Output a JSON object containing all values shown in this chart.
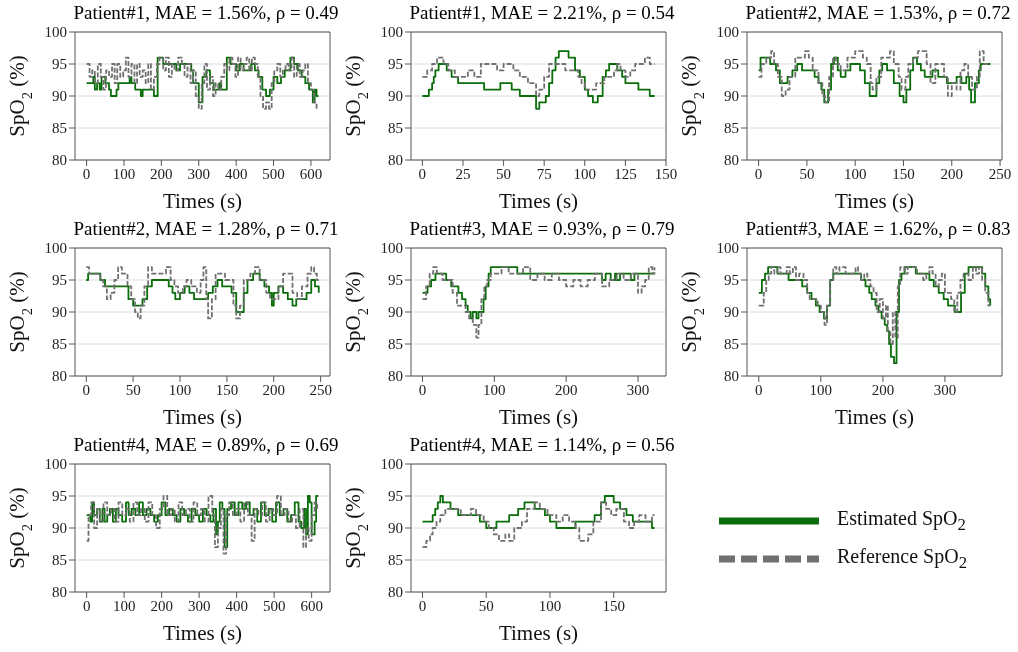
{
  "chart_data": [
    {
      "type": "step",
      "title": "Patient#1, MAE = 1.56%, ρ = 0.49",
      "xlabel": "Times (s)",
      "ylabel": "SpO$_{2}$ (%)",
      "xlim": [
        -31,
        651
      ],
      "xticks": [
        0,
        100,
        200,
        300,
        400,
        500,
        600
      ],
      "ylim": [
        80,
        100
      ],
      "yticks": [
        80,
        85,
        90,
        95,
        100
      ],
      "grid": "y",
      "series": [
        {
          "color": "#0a6e0a",
          "line_style": "solid",
          "x": [
            0,
            15,
            18,
            22,
            28,
            35,
            40,
            50,
            60,
            65,
            80,
            85,
            115,
            120,
            130,
            145,
            150,
            180,
            190,
            205,
            240,
            250,
            280,
            285,
            300,
            310,
            320,
            330,
            340,
            355,
            360,
            375,
            385,
            400,
            410,
            420,
            440,
            450,
            460,
            470,
            480,
            490,
            500,
            510,
            520,
            530,
            545,
            555,
            565,
            575,
            585,
            595,
            605,
            610,
            615,
            620
          ],
          "values": [
            92,
            92,
            93,
            91,
            92,
            91,
            93,
            92,
            91,
            90,
            91,
            92,
            93,
            92,
            91,
            90,
            91,
            90,
            96,
            95,
            94,
            95,
            94,
            92,
            89,
            93,
            94,
            92,
            91,
            92,
            91,
            96,
            95,
            94,
            95,
            94,
            95,
            94,
            93,
            91,
            90,
            91,
            93,
            92,
            93,
            94,
            96,
            95,
            94,
            93,
            92,
            91,
            89,
            91,
            90,
            90
          ]
        },
        {
          "color": "#707070",
          "line_style": "dashed",
          "x": [
            0,
            8,
            15,
            22,
            30,
            38,
            45,
            52,
            60,
            68,
            75,
            82,
            90,
            98,
            105,
            112,
            120,
            128,
            135,
            142,
            150,
            158,
            165,
            172,
            180,
            188,
            195,
            205,
            212,
            220,
            228,
            235,
            245,
            255,
            262,
            270,
            278,
            285,
            292,
            300,
            308,
            315,
            322,
            330,
            338,
            345,
            352,
            360,
            368,
            375,
            382,
            390,
            398,
            405,
            412,
            420,
            428,
            435,
            442,
            450,
            458,
            465,
            472,
            480,
            488,
            495,
            502,
            510,
            518,
            525,
            532,
            540,
            548,
            555,
            562,
            570,
            578,
            585,
            592,
            600,
            608,
            615
          ],
          "values": [
            95,
            93,
            94,
            92,
            95,
            93,
            91,
            94,
            93,
            95,
            92,
            95,
            93,
            94,
            96,
            93,
            95,
            92,
            95,
            93,
            94,
            92,
            95,
            91,
            93,
            95,
            96,
            94,
            96,
            93,
            95,
            94,
            96,
            95,
            93,
            95,
            92,
            94,
            90,
            88,
            92,
            95,
            91,
            93,
            90,
            92,
            91,
            93,
            95,
            94,
            96,
            95,
            93,
            96,
            94,
            95,
            96,
            94,
            96,
            95,
            93,
            90,
            88,
            89,
            88,
            92,
            94,
            95,
            93,
            94,
            95,
            94,
            96,
            93,
            95,
            93,
            94,
            95,
            92,
            91,
            89,
            88
          ]
        }
      ]
    },
    {
      "type": "step",
      "title": "Patient#1, MAE = 2.21%, ρ = 0.54",
      "xlabel": "Times (s)",
      "ylabel": "SpO$_{2}$ (%)",
      "xlim": [
        -7,
        150
      ],
      "xticks": [
        0,
        25,
        50,
        75,
        100,
        125,
        150
      ],
      "ylim": [
        80,
        100
      ],
      "yticks": [
        80,
        85,
        90,
        95,
        100
      ],
      "grid": "y",
      "series": [
        {
          "color": "#0a6e0a",
          "line_style": "solid",
          "x": [
            0,
            4,
            6,
            7,
            8,
            10,
            15,
            18,
            22,
            38,
            48,
            55,
            60,
            70,
            72,
            76,
            78,
            80,
            82,
            84,
            90,
            94,
            97,
            100,
            102,
            105,
            108,
            111,
            113,
            115,
            120,
            123,
            125,
            133,
            140,
            143
          ],
          "values": [
            90,
            91,
            92,
            93,
            94,
            95,
            94,
            93,
            92,
            91,
            92,
            91,
            90,
            88,
            89,
            90,
            92,
            94,
            96,
            97,
            96,
            94,
            93,
            91,
            90,
            89,
            90,
            93,
            94,
            95,
            94,
            93,
            92,
            91,
            90,
            90
          ]
        },
        {
          "color": "#707070",
          "line_style": "dashed",
          "x": [
            0,
            3,
            6,
            9,
            13,
            16,
            20,
            25,
            28,
            32,
            36,
            42,
            46,
            50,
            56,
            60,
            65,
            70,
            72,
            75,
            78,
            82,
            88,
            92,
            96,
            98,
            100,
            103,
            107,
            112,
            118,
            120,
            122,
            125,
            128,
            131,
            137,
            140,
            143
          ],
          "values": [
            93,
            94,
            95,
            96,
            95,
            94,
            93,
            93,
            94,
            93,
            95,
            95,
            94,
            95,
            94,
            93,
            92,
            90,
            91,
            93,
            95,
            95,
            94,
            94,
            93,
            92,
            91,
            91,
            92,
            93,
            94,
            95,
            94,
            93,
            94,
            95,
            96,
            95,
            95
          ]
        }
      ]
    },
    {
      "type": "step",
      "title": "Patient#2, MAE = 1.53%, ρ = 0.72",
      "xlabel": "Times (s)",
      "ylabel": "SpO$_{2}$ (%)",
      "xlim": [
        -12,
        252
      ],
      "xticks": [
        0,
        50,
        100,
        150,
        200,
        250
      ],
      "ylim": [
        80,
        100
      ],
      "yticks": [
        80,
        85,
        90,
        95,
        100
      ],
      "grid": "y",
      "series": [
        {
          "color": "#0a6e0a",
          "line_style": "solid",
          "x": [
            0,
            2,
            12,
            18,
            22,
            28,
            30,
            35,
            40,
            45,
            55,
            58,
            62,
            65,
            68,
            72,
            75,
            78,
            82,
            85,
            90,
            95,
            105,
            110,
            115,
            120,
            122,
            125,
            128,
            133,
            140,
            146,
            150,
            153,
            157,
            160,
            164,
            168,
            172,
            180,
            186,
            195,
            205,
            210,
            215,
            218,
            220,
            224,
            228,
            230,
            240
          ],
          "values": [
            94,
            96,
            95,
            94,
            92,
            92,
            93,
            94,
            95,
            94,
            94,
            93,
            92,
            91,
            89,
            91,
            95,
            96,
            94,
            93,
            94,
            95,
            94,
            92,
            90,
            90,
            92,
            94,
            95,
            94,
            92,
            90,
            89,
            91,
            94,
            96,
            95,
            94,
            93,
            94,
            93,
            92,
            93,
            92,
            93,
            91,
            89,
            92,
            94,
            95,
            95
          ]
        },
        {
          "color": "#707070",
          "line_style": "dashed",
          "x": [
            0,
            3,
            8,
            13,
            16,
            20,
            24,
            28,
            32,
            38,
            48,
            52,
            56,
            62,
            66,
            69,
            73,
            77,
            80,
            85,
            92,
            100,
            108,
            112,
            116,
            118,
            122,
            127,
            136,
            140,
            145,
            148,
            152,
            155,
            160,
            165,
            174,
            178,
            183,
            192,
            196,
            200,
            205,
            209,
            213,
            217,
            221,
            226,
            229,
            233,
            238
          ],
          "values": [
            93,
            95,
            96,
            97,
            95,
            93,
            90,
            91,
            93,
            96,
            97,
            96,
            94,
            92,
            90,
            89,
            93,
            96,
            95,
            94,
            96,
            97,
            96,
            95,
            92,
            91,
            93,
            96,
            97,
            95,
            93,
            91,
            93,
            95,
            96,
            97,
            95,
            92,
            95,
            93,
            90,
            92,
            91,
            94,
            95,
            93,
            91,
            93,
            97,
            95,
            95
          ]
        }
      ]
    },
    {
      "type": "step",
      "title": "Patient#2, MAE = 1.28%, ρ = 0.71",
      "xlabel": "Times (s)",
      "ylabel": "SpO$_{2}$ (%)",
      "xlim": [
        -12,
        260
      ],
      "xticks": [
        0,
        50,
        100,
        150,
        200,
        250
      ],
      "ylim": [
        80,
        100
      ],
      "yticks": [
        80,
        85,
        90,
        95,
        100
      ],
      "grid": "y",
      "series": [
        {
          "color": "#0a6e0a",
          "line_style": "solid",
          "x": [
            0,
            2,
            15,
            20,
            45,
            50,
            55,
            60,
            65,
            70,
            88,
            92,
            95,
            100,
            105,
            110,
            115,
            125,
            130,
            135,
            140,
            145,
            155,
            160,
            168,
            172,
            178,
            185,
            190,
            195,
            198,
            200,
            205,
            210,
            215,
            220,
            224,
            235,
            240,
            244,
            248
          ],
          "values": [
            95,
            96,
            95,
            94,
            92,
            91,
            91,
            92,
            94,
            95,
            94,
            93,
            92,
            93,
            94,
            93,
            92,
            92,
            93,
            94,
            95,
            94,
            93,
            90,
            93,
            95,
            96,
            95,
            94,
            93,
            91,
            93,
            94,
            93,
            92,
            91,
            92,
            93,
            95,
            94,
            93
          ]
        },
        {
          "color": "#707070",
          "line_style": "dashed",
          "x": [
            0,
            3,
            15,
            18,
            22,
            26,
            30,
            34,
            38,
            44,
            48,
            52,
            55,
            58,
            62,
            66,
            70,
            85,
            90,
            94,
            98,
            103,
            107,
            112,
            118,
            122,
            125,
            128,
            130,
            134,
            138,
            148,
            157,
            160,
            164,
            168,
            175,
            180,
            185,
            192,
            196,
            205,
            210,
            220,
            225,
            230,
            236,
            240,
            243,
            246,
            248
          ],
          "values": [
            97,
            96,
            95,
            94,
            92,
            93,
            95,
            97,
            96,
            94,
            92,
            90,
            89,
            91,
            94,
            97,
            96,
            97,
            95,
            94,
            93,
            94,
            95,
            94,
            93,
            95,
            97,
            92,
            89,
            92,
            96,
            95,
            91,
            89,
            91,
            95,
            96,
            97,
            95,
            93,
            92,
            94,
            96,
            93,
            92,
            94,
            96,
            97,
            96,
            95,
            95
          ]
        }
      ]
    },
    {
      "type": "step",
      "title": "Patient#3, MAE = 0.93%, ρ = 0.79",
      "xlabel": "Times (s)",
      "ylabel": "SpO$_{2}$ (%)",
      "xlim": [
        -16,
        339
      ],
      "xticks": [
        0,
        100,
        200,
        300
      ],
      "ylim": [
        80,
        100
      ],
      "yticks": [
        80,
        85,
        90,
        95,
        100
      ],
      "grid": "y",
      "series": [
        {
          "color": "#0a6e0a",
          "line_style": "solid",
          "x": [
            0,
            7,
            12,
            18,
            33,
            40,
            50,
            55,
            60,
            63,
            67,
            70,
            75,
            78,
            85,
            88,
            92,
            95,
            132,
            245,
            250,
            255,
            262,
            268,
            270,
            275,
            290,
            295,
            323
          ],
          "values": [
            93,
            94,
            95,
            96,
            95,
            94,
            93,
            92,
            91,
            90,
            89,
            90,
            89,
            90,
            92,
            94,
            96,
            97,
            96,
            96,
            95,
            96,
            95,
            96,
            95,
            96,
            95,
            96,
            96
          ]
        },
        {
          "color": "#707070",
          "line_style": "dashed",
          "x": [
            0,
            5,
            10,
            15,
            20,
            28,
            42,
            48,
            60,
            65,
            70,
            75,
            78,
            82,
            86,
            90,
            95,
            110,
            120,
            140,
            150,
            160,
            170,
            180,
            190,
            200,
            210,
            220,
            230,
            240,
            250,
            260,
            270,
            280,
            290,
            300,
            305,
            310,
            315,
            320,
            323
          ],
          "values": [
            92,
            94,
            96,
            97,
            96,
            95,
            93,
            91,
            90,
            89,
            88,
            86,
            88,
            92,
            94,
            95,
            96,
            97,
            96,
            97,
            95,
            96,
            95,
            96,
            95,
            94,
            95,
            94,
            95,
            96,
            94,
            95,
            96,
            95,
            96,
            93,
            94,
            95,
            97,
            96,
            97
          ]
        }
      ]
    },
    {
      "type": "step",
      "title": "Patient#3, MAE = 1.62%, ρ = 0.83",
      "xlabel": "Times (s)",
      "ylabel": "SpO$_{2}$ (%)",
      "xlim": [
        -19,
        392
      ],
      "xticks": [
        0,
        100,
        200,
        300
      ],
      "ylim": [
        80,
        100
      ],
      "yticks": [
        80,
        85,
        90,
        95,
        100
      ],
      "grid": "y",
      "series": [
        {
          "color": "#0a6e0a",
          "line_style": "solid",
          "x": [
            0,
            5,
            10,
            15,
            30,
            48,
            70,
            78,
            85,
            92,
            98,
            105,
            110,
            115,
            120,
            165,
            172,
            178,
            182,
            188,
            193,
            198,
            203,
            207,
            210,
            213,
            218,
            222,
            226,
            230,
            235,
            253,
            275,
            282,
            290,
            298,
            305,
            316,
            326,
            332,
            338,
            360,
            365,
            370,
            373
          ],
          "values": [
            93,
            95,
            96,
            97,
            96,
            95,
            94,
            93,
            92,
            91,
            90,
            89,
            91,
            95,
            96,
            95,
            94,
            93,
            92,
            91,
            90,
            89,
            88,
            87,
            85,
            83,
            82,
            90,
            95,
            96,
            97,
            96,
            95,
            94,
            93,
            92,
            91,
            90,
            93,
            96,
            97,
            96,
            94,
            92,
            91
          ]
        },
        {
          "color": "#707070",
          "line_style": "dashed",
          "x": [
            0,
            8,
            12,
            16,
            20,
            25,
            30,
            35,
            45,
            50,
            55,
            60,
            65,
            72,
            78,
            82,
            95,
            100,
            106,
            110,
            115,
            120,
            125,
            130,
            140,
            156,
            160,
            165,
            170,
            175,
            180,
            185,
            190,
            195,
            200,
            205,
            208,
            212,
            216,
            220,
            224,
            228,
            235,
            240,
            255,
            265,
            270,
            275,
            280,
            285,
            290,
            295,
            300,
            310,
            315,
            320,
            325,
            330,
            338,
            345,
            350,
            355,
            360,
            365,
            370,
            373
          ],
          "values": [
            91,
            93,
            95,
            96,
            97,
            96,
            97,
            96,
            97,
            96,
            97,
            95,
            96,
            95,
            93,
            92,
            91,
            90,
            88,
            91,
            95,
            97,
            96,
            97,
            96,
            97,
            96,
            95,
            96,
            95,
            94,
            93,
            90,
            92,
            89,
            91,
            87,
            85,
            90,
            86,
            94,
            97,
            96,
            97,
            96,
            95,
            96,
            97,
            96,
            94,
            95,
            96,
            93,
            92,
            90,
            93,
            95,
            96,
            95,
            97,
            96,
            97,
            95,
            93,
            91,
            91
          ]
        }
      ]
    },
    {
      "type": "step",
      "title": "Patient#4, MAE = 0.89%, ρ = 0.69",
      "xlabel": "Times (s)",
      "ylabel": "SpO$_{2}$ (%)",
      "xlim": [
        -31,
        649
      ],
      "xticks": [
        0,
        100,
        200,
        300,
        400,
        500,
        600
      ],
      "ylim": [
        80,
        100
      ],
      "yticks": [
        80,
        85,
        90,
        95,
        100
      ],
      "grid": "y",
      "series": [
        {
          "color": "#0a6e0a",
          "line_style": "solid",
          "x": [
            0,
            10,
            15,
            20,
            28,
            35,
            42,
            48,
            55,
            62,
            70,
            78,
            85,
            95,
            105,
            112,
            120,
            130,
            140,
            150,
            160,
            170,
            180,
            190,
            200,
            210,
            220,
            230,
            240,
            250,
            260,
            270,
            280,
            290,
            300,
            310,
            320,
            330,
            338,
            345,
            350,
            355,
            362,
            368,
            375,
            385,
            395,
            405,
            415,
            425,
            435,
            445,
            455,
            465,
            475,
            485,
            495,
            505,
            515,
            525,
            535,
            545,
            555,
            565,
            572,
            580,
            585,
            590,
            595,
            600,
            608,
            612,
            618
          ],
          "values": [
            92,
            91,
            94,
            92,
            93,
            91,
            93,
            91,
            92,
            93,
            91,
            93,
            92,
            91,
            94,
            92,
            93,
            92,
            94,
            92,
            93,
            92,
            91,
            92,
            94,
            92,
            93,
            92,
            91,
            93,
            92,
            91,
            93,
            92,
            91,
            93,
            92,
            91,
            93,
            89,
            91,
            94,
            93,
            87,
            93,
            94,
            92,
            94,
            93,
            94,
            92,
            93,
            91,
            94,
            92,
            93,
            91,
            94,
            92,
            93,
            91,
            92,
            94,
            91,
            90,
            93,
            89,
            95,
            94,
            89,
            91,
            95,
            95
          ]
        },
        {
          "color": "#707070",
          "line_style": "dashed",
          "x": [
            0,
            5,
            12,
            20,
            28,
            35,
            45,
            55,
            65,
            75,
            85,
            95,
            105,
            115,
            125,
            135,
            145,
            155,
            165,
            175,
            185,
            195,
            205,
            215,
            225,
            235,
            245,
            255,
            265,
            275,
            285,
            295,
            305,
            315,
            325,
            335,
            342,
            350,
            358,
            365,
            372,
            380,
            390,
            400,
            410,
            420,
            430,
            440,
            448,
            458,
            468,
            478,
            488,
            498,
            508,
            518,
            528,
            538,
            548,
            558,
            568,
            578,
            585,
            592,
            600,
            608,
            615
          ],
          "values": [
            88,
            92,
            94,
            90,
            93,
            91,
            94,
            92,
            93,
            91,
            94,
            92,
            93,
            91,
            94,
            92,
            93,
            91,
            94,
            92,
            90,
            93,
            95,
            92,
            93,
            91,
            94,
            92,
            93,
            91,
            94,
            92,
            93,
            91,
            95,
            92,
            87,
            90,
            93,
            86,
            92,
            94,
            92,
            93,
            91,
            94,
            92,
            88,
            93,
            92,
            94,
            91,
            93,
            92,
            95,
            92,
            93,
            91,
            92,
            90,
            93,
            87,
            90,
            88,
            92,
            94,
            93
          ]
        }
      ]
    },
    {
      "type": "step",
      "title": "Patient#4, MAE = 1.14%, ρ = 0.56",
      "xlabel": "Times (s)",
      "ylabel": "SpO$_{2}$ (%)",
      "xlim": [
        -9,
        191
      ],
      "xticks": [
        0,
        50,
        100,
        150
      ],
      "ylim": [
        80,
        100
      ],
      "yticks": [
        80,
        85,
        90,
        95,
        100
      ],
      "grid": "y",
      "legend": "right",
      "series": [
        {
          "name": "Estimated SpO$_{2}$",
          "color": "#0a6e0a",
          "line_style": "solid",
          "x": [
            0,
            8,
            10,
            12,
            14,
            16,
            22,
            28,
            45,
            50,
            58,
            68,
            75,
            80,
            88,
            96,
            100,
            105,
            120,
            135,
            140,
            143,
            150,
            155,
            160,
            165,
            180,
            182
          ],
          "values": [
            91,
            92,
            93,
            94,
            95,
            94,
            93,
            92,
            91,
            90,
            91,
            92,
            93,
            94,
            93,
            92,
            91,
            90,
            91,
            92,
            94,
            95,
            94,
            93,
            92,
            91,
            90,
            90
          ]
        },
        {
          "name": "Reference SpO$_{2}$",
          "color": "#707070",
          "line_style": "dashed",
          "x": [
            0,
            3,
            6,
            8,
            11,
            14,
            18,
            30,
            38,
            42,
            48,
            52,
            56,
            60,
            65,
            68,
            72,
            78,
            82,
            88,
            92,
            98,
            105,
            110,
            115,
            120,
            123,
            130,
            134,
            140,
            144,
            148,
            152,
            158,
            162,
            166,
            170,
            175,
            180,
            182
          ],
          "values": [
            87,
            88,
            89,
            90,
            91,
            92,
            93,
            92,
            93,
            92,
            91,
            90,
            89,
            88,
            89,
            88,
            90,
            91,
            93,
            94,
            93,
            92,
            91,
            92,
            91,
            90,
            88,
            89,
            91,
            94,
            93,
            92,
            93,
            91,
            90,
            91,
            92,
            91,
            92,
            92
          ]
        }
      ]
    }
  ]
}
